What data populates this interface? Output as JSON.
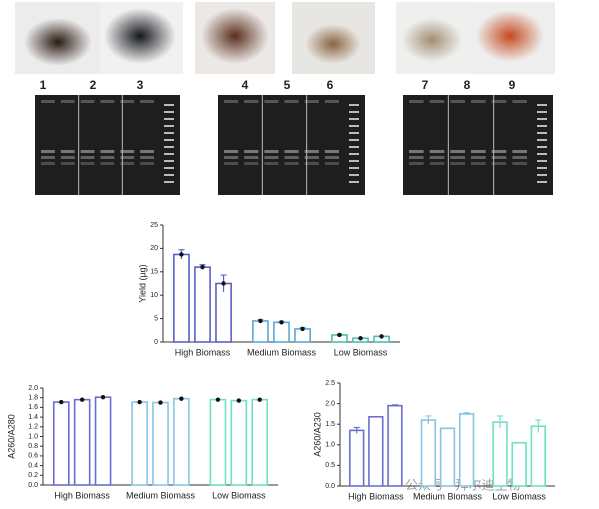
{
  "sample_labels": [
    "1",
    "2",
    "3",
    "4",
    "5",
    "6",
    "7",
    "8",
    "9"
  ],
  "watermark": "公众号 · 拜尔迪生物",
  "chart_data": [
    {
      "type": "bar",
      "y_label": "Yield (µg)",
      "categories": [
        "High Biomass",
        "Medium Biomass",
        "Low Biomass"
      ],
      "colors": [
        "#5b5fc7",
        "#5aa9d6",
        "#4cc0b0"
      ],
      "values": [
        [
          18.7,
          16,
          12.5
        ],
        [
          4.5,
          4.2,
          2.8
        ],
        [
          1.5,
          0.8,
          1.2
        ]
      ],
      "errors": [
        [
          1.0,
          0.5,
          1.8
        ],
        [
          0.3,
          0.2,
          0.3
        ],
        [
          0.2,
          0.1,
          0.1
        ]
      ],
      "markers": true,
      "ylim": [
        0,
        25
      ],
      "yticks": [
        0,
        5,
        10,
        15,
        20,
        25
      ]
    },
    {
      "type": "bar",
      "y_label": "A260/A280",
      "categories": [
        "High Biomass",
        "Medium Biomass",
        "Low Biomass"
      ],
      "colors": [
        "#6a6ed0",
        "#88c4e4",
        "#6ee0c4"
      ],
      "values": [
        [
          1.71,
          1.76,
          1.81
        ],
        [
          1.71,
          1.7,
          1.78
        ],
        [
          1.76,
          1.74,
          1.76
        ]
      ],
      "markers": true,
      "ylim": [
        0,
        2
      ],
      "yticks": [
        {
          "value": 0,
          "label": "0.0"
        },
        0.2,
        0.4,
        0.6,
        0.8,
        {
          "value": 1,
          "label": "1.0"
        },
        1.2,
        1.4,
        1.6,
        1.8,
        {
          "value": 2,
          "label": "2.0"
        }
      ]
    },
    {
      "type": "bar",
      "y_label": "A260/A230",
      "categories": [
        "High Biomass",
        "Medium Biomass",
        "Low Biomass"
      ],
      "colors": [
        "#6a6ed0",
        "#88c4e4",
        "#6ee0c4"
      ],
      "values": [
        [
          1.35,
          1.68,
          1.95
        ],
        [
          1.6,
          1.4,
          1.75
        ],
        [
          1.55,
          1.05,
          1.45
        ]
      ],
      "errors": [
        [
          0.07,
          0,
          0.02
        ],
        [
          0.1,
          0,
          0.03
        ],
        [
          0.15,
          0,
          0.15
        ]
      ],
      "markers": false,
      "ylim": [
        0,
        2.5
      ],
      "yticks": [
        {
          "value": 0,
          "label": "0.0"
        },
        0.5,
        {
          "value": 1,
          "label": "1.0"
        },
        1.5,
        {
          "value": 2,
          "label": "2.0"
        },
        2.5
      ]
    }
  ]
}
